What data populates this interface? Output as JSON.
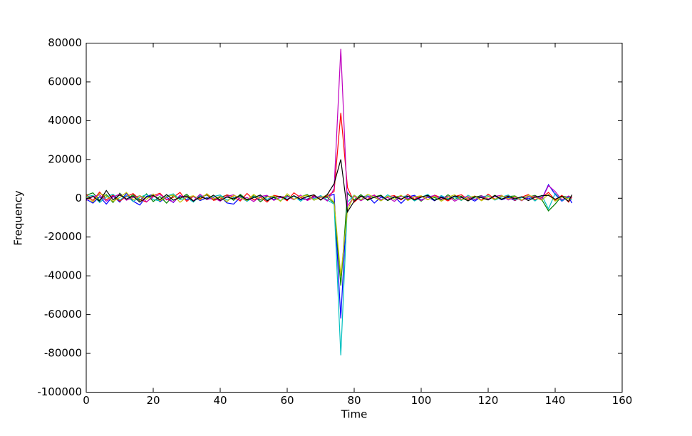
{
  "chart_data": {
    "type": "line",
    "xlabel": "Time",
    "ylabel": "Frequency",
    "xlim": [
      0,
      160
    ],
    "xticks": [
      0,
      20,
      40,
      60,
      80,
      100,
      120,
      140,
      160
    ],
    "ylim": [
      -100000,
      80000
    ],
    "yticks": [
      -100000,
      -80000,
      -60000,
      -40000,
      -20000,
      0,
      20000,
      40000,
      60000,
      80000
    ],
    "grid": false,
    "x": [
      0,
      2,
      4,
      6,
      8,
      10,
      12,
      14,
      16,
      18,
      20,
      22,
      24,
      26,
      28,
      30,
      32,
      34,
      36,
      38,
      40,
      42,
      44,
      46,
      48,
      50,
      52,
      54,
      56,
      58,
      60,
      62,
      64,
      66,
      68,
      70,
      72,
      74,
      76,
      78,
      80,
      82,
      84,
      86,
      88,
      90,
      92,
      94,
      96,
      98,
      100,
      102,
      104,
      106,
      108,
      110,
      112,
      114,
      116,
      118,
      120,
      122,
      124,
      126,
      128,
      130,
      132,
      134,
      136,
      138,
      140,
      142,
      144,
      145
    ],
    "series": [
      {
        "color": "#0000ff",
        "values": [
          -500,
          -2500,
          800,
          -3000,
          1200,
          -2000,
          2500,
          -1500,
          -3500,
          1000,
          2000,
          -1800,
          600,
          -2200,
          1500,
          -800,
          900,
          -1200,
          300,
          -600,
          1100,
          -2400,
          -3000,
          500,
          -1500,
          800,
          -900,
          1300,
          -700,
          400,
          -500,
          1200,
          -800,
          -400,
          900,
          -600,
          1000,
          2000,
          -62000,
          3000,
          -1500,
          800,
          1200,
          -2500,
          600,
          -1100,
          900,
          -2600,
          700,
          1500,
          -900,
          600,
          -1300,
          800,
          -400,
          1200,
          -700,
          300,
          -1500,
          900,
          -600,
          1100,
          -800,
          400,
          -1200,
          700,
          -300,
          900,
          -500,
          7000,
          2000,
          -1500,
          800,
          -2500
        ]
      },
      {
        "color": "#008000",
        "values": [
          1500,
          2800,
          -1000,
          1900,
          -2200,
          2600,
          -600,
          1800,
          -1200,
          2300,
          -1700,
          900,
          -2500,
          1400,
          -300,
          2100,
          -1400,
          600,
          1700,
          -900,
          500,
          1600,
          -1100,
          2000,
          -700,
          1300,
          -1800,
          800,
          300,
          -1300,
          1400,
          -500,
          700,
          1900,
          -1000,
          600,
          400,
          -2500,
          -45000,
          2500,
          -800,
          1900,
          -1100,
          700,
          1600,
          -1200,
          500,
          1300,
          -800,
          1000,
          -1500,
          1200,
          300,
          -900,
          1800,
          -600,
          1100,
          -1300,
          500,
          1400,
          -800,
          1600,
          -400,
          900,
          1200,
          -1000,
          600,
          1500,
          -700,
          -6500,
          -3000,
          1200,
          500,
          1000
        ]
      },
      {
        "color": "#ff0000",
        "values": [
          2000,
          -1200,
          3200,
          -800,
          1600,
          -1500,
          900,
          2400,
          -600,
          -2000,
          1300,
          2600,
          -900,
          500,
          3000,
          -1600,
          1000,
          -300,
          2200,
          -1100,
          -400,
          1800,
          700,
          -1400,
          2500,
          -900,
          600,
          -2000,
          1500,
          800,
          -1300,
          2800,
          400,
          -900,
          1500,
          -700,
          1200,
          3500,
          44000,
          5500,
          -2000,
          1000,
          -600,
          1700,
          -1200,
          800,
          1400,
          -900,
          2000,
          -500,
          1100,
          -800,
          1600,
          300,
          -1400,
          900,
          1800,
          -600,
          1200,
          -1000,
          2100,
          -500,
          800,
          1300,
          -1100,
          600,
          1900,
          -800,
          400,
          3000,
          -1000,
          1500,
          -2000,
          600
        ]
      },
      {
        "color": "#00bfbf",
        "values": [
          800,
          1500,
          -2200,
          600,
          2100,
          -900,
          1400,
          -1700,
          500,
          1900,
          -600,
          -1400,
          1100,
          2300,
          -800,
          400,
          -2000,
          1500,
          -300,
          900,
          1700,
          -1000,
          300,
          1200,
          -1600,
          700,
          1300,
          -500,
          800,
          -1200,
          600,
          1100,
          -1500,
          900,
          -300,
          1400,
          -900,
          -3000,
          -81000,
          -2000,
          1600,
          -700,
          1300,
          400,
          -1100,
          1800,
          -600,
          900,
          1200,
          -1400,
          500,
          2000,
          -900,
          1400,
          -300,
          700,
          -1200,
          1600,
          -500,
          800,
          1300,
          -1000,
          600,
          1700,
          -800,
          300,
          1000,
          -1400,
          1500,
          -5500,
          2500,
          -1200,
          400,
          -800
        ]
      },
      {
        "color": "#bf00bf",
        "values": [
          -1200,
          900,
          1700,
          -1500,
          600,
          2200,
          -1000,
          400,
          1300,
          -1800,
          700,
          1900,
          -500,
          -2000,
          1200,
          800,
          -1300,
          2100,
          -700,
          300,
          -1500,
          1000,
          1800,
          -600,
          400,
          -1700,
          900,
          1500,
          -1100,
          600,
          1000,
          -800,
          1600,
          -1200,
          500,
          800,
          -1400,
          5000,
          77000,
          -4000,
          1000,
          -1300,
          700,
          1500,
          -800,
          400,
          -1600,
          1100,
          -300,
          900,
          -1200,
          700,
          1400,
          -500,
          1000,
          -1500,
          300,
          900,
          -800,
          1300,
          -400,
          1000,
          1500,
          -900,
          600,
          -1300,
          800,
          1100,
          -600,
          6500,
          3500,
          -800,
          1200,
          300
        ]
      },
      {
        "color": "#bfbf00",
        "values": [
          1000,
          -2000,
          2500,
          1200,
          -1600,
          400,
          3000,
          -900,
          1400,
          -500,
          2200,
          -1300,
          800,
          1700,
          -2100,
          600,
          1300,
          -900,
          2400,
          -400,
          900,
          -1800,
          1500,
          300,
          -1200,
          2000,
          -600,
          700,
          1200,
          -1600,
          2300,
          -600,
          800,
          1500,
          -1000,
          400,
          1700,
          -2000,
          -40000,
          -6000,
          1500,
          -900,
          2000,
          600,
          -1400,
          1100,
          -500,
          1600,
          -1200,
          700,
          1300,
          -700,
          1000,
          -1500,
          500,
          1800,
          -900,
          400,
          1100,
          -1300,
          800,
          -600,
          1400,
          -300,
          900,
          -1100,
          1600,
          500,
          -1000,
          2000,
          -1500,
          700,
          -400,
          1200
        ]
      },
      {
        "color": "#000000",
        "values": [
          -300,
          1000,
          -1500,
          4000,
          -800,
          1700,
          -400,
          1100,
          -2000,
          600,
          1400,
          -700,
          1900,
          -1000,
          500,
          1200,
          -1500,
          800,
          -400,
          1600,
          -1100,
          600,
          -300,
          1400,
          -900,
          300,
          1700,
          -1300,
          500,
          1000,
          -700,
          1300,
          -500,
          900,
          1800,
          -1000,
          2000,
          7500,
          20000,
          -7000,
          -1500,
          1200,
          -800,
          500,
          1300,
          -1000,
          700,
          -400,
          1100,
          -900,
          600,
          1500,
          -1100,
          400,
          -700,
          1200,
          500,
          -1400,
          900,
          300,
          -900,
          1400,
          -600,
          1000,
          -300,
          800,
          -1200,
          600,
          1300,
          1500,
          -500,
          1000,
          -1600,
          1800
        ]
      }
    ]
  }
}
